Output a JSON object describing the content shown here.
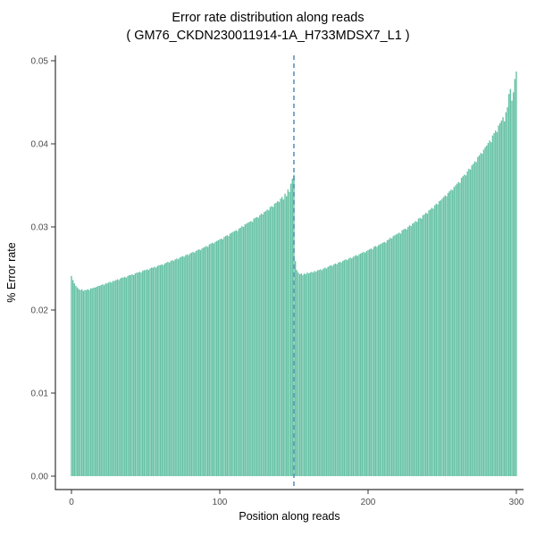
{
  "chart_data": {
    "type": "bar",
    "title": "Error rate distribution along reads",
    "subtitle": "( GM76_CKDN230011914-1A_H733MDSX7_L1 )",
    "xlabel": "Position along reads",
    "ylabel": "% Error rate",
    "xlim": [
      0,
      300
    ],
    "ylim": [
      0,
      0.05
    ],
    "grid": false,
    "legend": "none",
    "x_ticks": [
      0,
      100,
      200,
      300
    ],
    "x_tick_labels": [
      "0",
      "100",
      "200",
      "300"
    ],
    "y_ticks": [
      0,
      0.01,
      0.02,
      0.03,
      0.04,
      0.05
    ],
    "y_tick_labels": [
      "0.00",
      "0.01",
      "0.02",
      "0.03",
      "0.04",
      "0.05"
    ],
    "vline": {
      "x": 150,
      "style": "dashed",
      "color": "#4682B4"
    },
    "colors": {
      "bar": "#66C2A5",
      "axis": "#333333",
      "tick_text": "#4d4d4d",
      "background": "#ffffff"
    },
    "x_start": 0,
    "x_step": 1,
    "values": [
      0.0241,
      0.0236,
      0.0232,
      0.0229,
      0.0227,
      0.0225,
      0.0224,
      0.0225,
      0.0223,
      0.0224,
      0.0224,
      0.0225,
      0.0224,
      0.0226,
      0.0226,
      0.0227,
      0.0227,
      0.0228,
      0.0229,
      0.0229,
      0.023,
      0.0231,
      0.023,
      0.0232,
      0.0232,
      0.0233,
      0.0234,
      0.0233,
      0.0235,
      0.0235,
      0.0236,
      0.0237,
      0.0236,
      0.0238,
      0.0239,
      0.0239,
      0.024,
      0.0239,
      0.0241,
      0.0242,
      0.0242,
      0.0243,
      0.0242,
      0.0244,
      0.0245,
      0.0245,
      0.0246,
      0.0245,
      0.0247,
      0.0248,
      0.0248,
      0.0249,
      0.0248,
      0.025,
      0.0251,
      0.0251,
      0.0252,
      0.0251,
      0.0253,
      0.0254,
      0.0254,
      0.0255,
      0.0254,
      0.0256,
      0.0257,
      0.0258,
      0.0257,
      0.0259,
      0.026,
      0.0259,
      0.0261,
      0.0262,
      0.0261,
      0.0263,
      0.0264,
      0.0265,
      0.0264,
      0.0266,
      0.0267,
      0.0266,
      0.0268,
      0.0269,
      0.027,
      0.0269,
      0.0271,
      0.0272,
      0.0273,
      0.0272,
      0.0274,
      0.0275,
      0.0276,
      0.0277,
      0.0276,
      0.0279,
      0.028,
      0.0281,
      0.028,
      0.0282,
      0.0283,
      0.0284,
      0.0285,
      0.0286,
      0.0285,
      0.0288,
      0.0289,
      0.029,
      0.0289,
      0.0292,
      0.0293,
      0.0294,
      0.0295,
      0.0296,
      0.0295,
      0.0298,
      0.0299,
      0.0301,
      0.03,
      0.0303,
      0.0304,
      0.0305,
      0.0306,
      0.0307,
      0.0306,
      0.031,
      0.0311,
      0.0312,
      0.0311,
      0.0314,
      0.0316,
      0.0315,
      0.0318,
      0.0319,
      0.0321,
      0.032,
      0.0324,
      0.0325,
      0.0324,
      0.0328,
      0.0329,
      0.0331,
      0.033,
      0.0334,
      0.0336,
      0.0333,
      0.034,
      0.0337,
      0.0345,
      0.0342,
      0.0352,
      0.0358,
      0.0363,
      0.0259,
      0.0248,
      0.0245,
      0.0243,
      0.0244,
      0.0242,
      0.0244,
      0.0243,
      0.0245,
      0.0244,
      0.0245,
      0.0246,
      0.0245,
      0.0247,
      0.0246,
      0.0248,
      0.0248,
      0.0249,
      0.0248,
      0.025,
      0.0251,
      0.025,
      0.0252,
      0.0253,
      0.0254,
      0.0253,
      0.0255,
      0.0256,
      0.0255,
      0.0257,
      0.0258,
      0.0257,
      0.0259,
      0.026,
      0.0261,
      0.026,
      0.0262,
      0.0263,
      0.0262,
      0.0264,
      0.0265,
      0.0266,
      0.0265,
      0.0267,
      0.0268,
      0.0269,
      0.027,
      0.0269,
      0.0271,
      0.0272,
      0.0273,
      0.0274,
      0.0273,
      0.0276,
      0.0277,
      0.0276,
      0.0278,
      0.0279,
      0.028,
      0.0281,
      0.0282,
      0.0281,
      0.0284,
      0.0285,
      0.0287,
      0.0286,
      0.0289,
      0.029,
      0.0291,
      0.0292,
      0.0293,
      0.0292,
      0.0296,
      0.0297,
      0.0298,
      0.0297,
      0.03,
      0.0302,
      0.0301,
      0.0304,
      0.0305,
      0.0307,
      0.0306,
      0.031,
      0.0311,
      0.031,
      0.0314,
      0.0315,
      0.0317,
      0.0316,
      0.032,
      0.0321,
      0.0323,
      0.0322,
      0.0326,
      0.0328,
      0.0327,
      0.0331,
      0.0332,
      0.0334,
      0.0336,
      0.0338,
      0.0337,
      0.0341,
      0.0343,
      0.0345,
      0.0344,
      0.0348,
      0.035,
      0.0352,
      0.0354,
      0.0353,
      0.0359,
      0.0361,
      0.0363,
      0.0362,
      0.0367,
      0.037,
      0.0369,
      0.0374,
      0.0376,
      0.0379,
      0.0378,
      0.0384,
      0.0386,
      0.0389,
      0.0388,
      0.0393,
      0.0396,
      0.0398,
      0.0401,
      0.0404,
      0.0402,
      0.041,
      0.0413,
      0.0416,
      0.0414,
      0.0422,
      0.0425,
      0.0428,
      0.0432,
      0.0427,
      0.0438,
      0.0444,
      0.046,
      0.0466,
      0.0452,
      0.0462,
      0.0478,
      0.0487
    ]
  }
}
